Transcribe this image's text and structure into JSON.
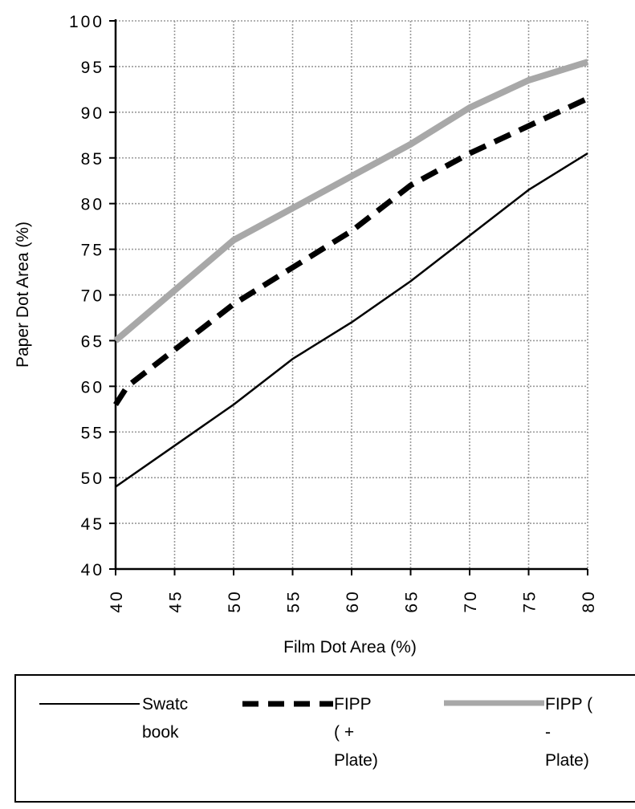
{
  "chart_data": {
    "type": "line",
    "xlabel": "Film Dot Area (%)",
    "ylabel": "Paper Dot Area (%)",
    "xlim": [
      40,
      80
    ],
    "ylim": [
      40,
      100
    ],
    "x_ticks": [
      "40",
      "45",
      "50",
      "55",
      "60",
      "65",
      "70",
      "75",
      "80"
    ],
    "y_ticks": [
      "40",
      "45",
      "50",
      "55",
      "60",
      "65",
      "70",
      "75",
      "80",
      "85",
      "90",
      "95",
      "100"
    ],
    "grid": true,
    "legend_position": "bottom",
    "series": [
      {
        "name": "Swatc book",
        "style": "solid-black",
        "color": "#000000",
        "points": [
          [
            40,
            49
          ],
          [
            45,
            53.5
          ],
          [
            50,
            58
          ],
          [
            55,
            63
          ],
          [
            60,
            67
          ],
          [
            65,
            71.5
          ],
          [
            70,
            76.5
          ],
          [
            75,
            81.5
          ],
          [
            80,
            85.5
          ]
        ]
      },
      {
        "name": "FIPP ( + Plate)",
        "style": "dashed-black",
        "color": "#000000",
        "points": [
          [
            40,
            58
          ],
          [
            41,
            60
          ],
          [
            45,
            64
          ],
          [
            50,
            69
          ],
          [
            55,
            73
          ],
          [
            60,
            77
          ],
          [
            65,
            82
          ],
          [
            70,
            85.5
          ],
          [
            75,
            88.5
          ],
          [
            80,
            91.5
          ]
        ]
      },
      {
        "name": "FIPP ( - Plate)",
        "style": "thick-gray",
        "color": "#a8a8a8",
        "points": [
          [
            40,
            65
          ],
          [
            45,
            70.5
          ],
          [
            50,
            76
          ],
          [
            55,
            79.5
          ],
          [
            60,
            83
          ],
          [
            65,
            86.5
          ],
          [
            70,
            90.5
          ],
          [
            75,
            93.5
          ],
          [
            80,
            95.5
          ]
        ]
      }
    ]
  },
  "legend": {
    "items": [
      {
        "label": "Swatc\nbook"
      },
      {
        "label": "FIPP\n( +\nPlate)"
      },
      {
        "label": "FIPP (\n-\nPlate)"
      }
    ]
  }
}
